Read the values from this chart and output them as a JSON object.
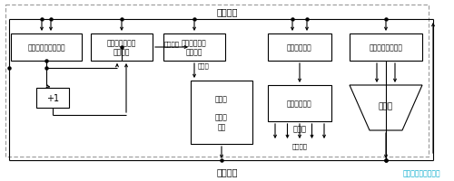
{
  "bg_color": "#ffffff",
  "line_color": "#000000",
  "title_input": "入力バス",
  "title_output": "出力バス",
  "watermark": "マイコミジャーナル",
  "watermark_color": "#00aacc"
}
